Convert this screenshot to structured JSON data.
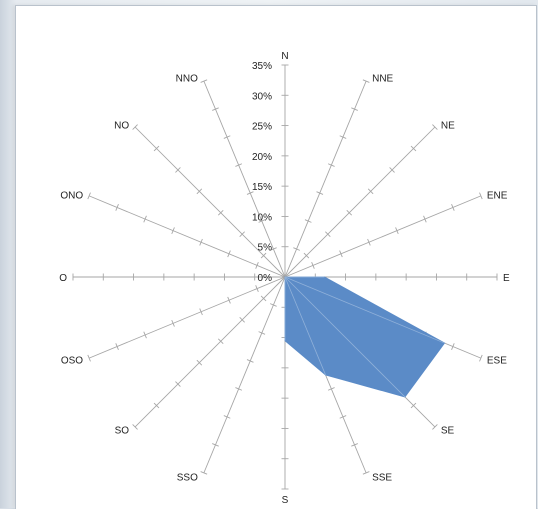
{
  "chart_data": {
    "type": "radar",
    "title": "",
    "categories": [
      "N",
      "NNE",
      "NE",
      "ENE",
      "E",
      "ESE",
      "SE",
      "SSE",
      "S",
      "SSO",
      "SO",
      "OSO",
      "O",
      "ONO",
      "NO",
      "NNO"
    ],
    "series": [
      {
        "values": [
          0,
          0,
          0,
          0,
          6.5,
          28.5,
          28,
          17.5,
          10.5,
          0,
          0,
          0,
          0,
          0,
          0,
          0
        ],
        "color": "#5b8bc7"
      }
    ],
    "r_ticks": [
      "0%",
      "5%",
      "10%",
      "15%",
      "20%",
      "25%",
      "30%",
      "35%"
    ],
    "r_max": 35,
    "r_step": 5,
    "grid": "spokes-only",
    "legend": "none"
  }
}
